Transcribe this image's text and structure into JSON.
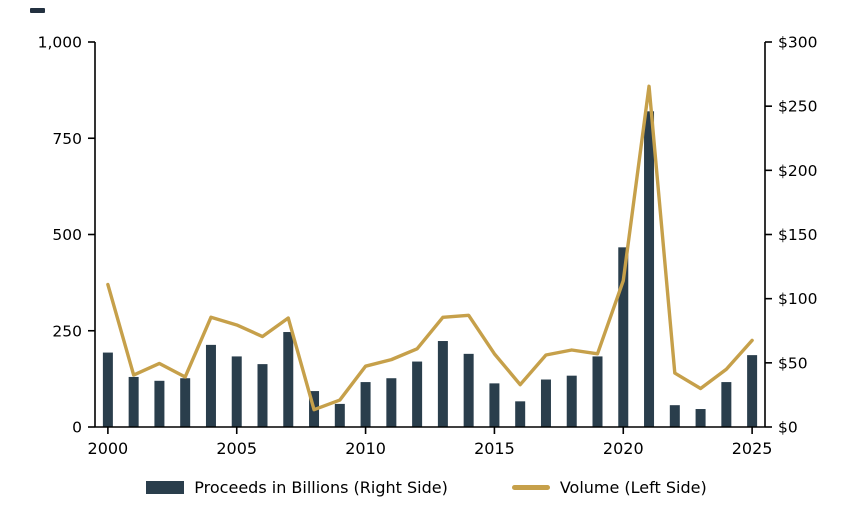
{
  "chart_data": {
    "type": "bar+line",
    "title": "",
    "grid": false,
    "legend_position": "bottom",
    "categories": [
      2000,
      2001,
      2002,
      2003,
      2004,
      2005,
      2006,
      2007,
      2008,
      2009,
      2010,
      2011,
      2012,
      2013,
      2014,
      2015,
      2016,
      2017,
      2018,
      2019,
      2020,
      2021,
      2022,
      2023,
      2024,
      2025
    ],
    "series": [
      {
        "name": "Proceeds in Billions (Right Side)",
        "type": "bar",
        "axis": "right",
        "color": "#2a3e4c",
        "values": [
          58,
          39,
          36,
          38,
          64,
          55,
          49,
          74,
          28,
          18,
          35,
          38,
          51,
          67,
          57,
          34,
          20,
          37,
          40,
          55,
          140,
          246,
          17,
          14,
          35,
          56
        ]
      },
      {
        "name": "Volume (Left Side)",
        "type": "line",
        "axis": "left",
        "color": "#c6a04a",
        "values": [
          370,
          135,
          165,
          130,
          285,
          265,
          235,
          283,
          45,
          70,
          158,
          175,
          203,
          285,
          290,
          190,
          110,
          187,
          200,
          190,
          380,
          885,
          140,
          100,
          150,
          225
        ]
      }
    ],
    "left_axis": {
      "min": 0,
      "max": 1000,
      "tick_values": [
        0,
        250,
        500,
        750,
        1000
      ],
      "tick_labels": [
        "0",
        "250",
        "500",
        "750",
        "1,000"
      ]
    },
    "right_axis": {
      "min": 0,
      "max": 300,
      "tick_values": [
        0,
        50,
        100,
        150,
        200,
        250,
        300
      ],
      "tick_labels": [
        "$0",
        "$50",
        "$100",
        "$150",
        "$200",
        "$250",
        "$300"
      ]
    },
    "x_axis": {
      "tick_years": [
        2000,
        2005,
        2010,
        2015,
        2020,
        2025
      ],
      "tick_labels": [
        "2000",
        "2005",
        "2010",
        "2015",
        "2020",
        "2025"
      ]
    }
  }
}
